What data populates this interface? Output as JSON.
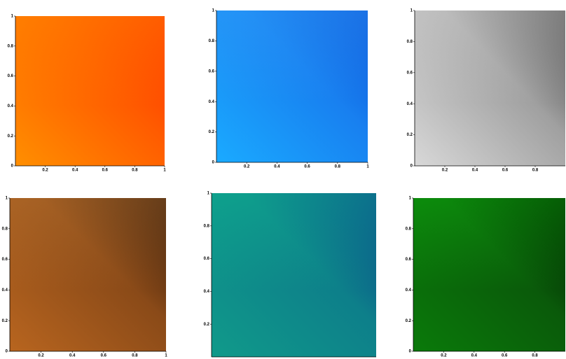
{
  "chart_data": [
    {
      "type": "heatmap",
      "xlim": [
        0,
        1
      ],
      "ylim": [
        0,
        1
      ],
      "xticks": [
        0.2,
        0.4,
        0.6,
        0.8,
        1
      ],
      "yticks": [
        0,
        0.2,
        0.4,
        0.6,
        0.8,
        1
      ],
      "colors": [
        "#ff8f00",
        "#ff5a00",
        "#ff3000",
        "#ffb000"
      ]
    },
    {
      "type": "heatmap",
      "xlim": [
        0,
        1
      ],
      "ylim": [
        0,
        1
      ],
      "xticks": [
        0.2,
        0.4,
        0.6,
        0.8,
        1
      ],
      "yticks": [
        0,
        0.2,
        0.4,
        0.6,
        0.8,
        1
      ],
      "colors": [
        "#1aaaff",
        "#1880f0",
        "#0a50d8",
        "#3ab0ff"
      ]
    },
    {
      "type": "heatmap",
      "xlim": [
        0,
        1
      ],
      "ylim": [
        0,
        1
      ],
      "xticks": [
        0.2,
        0.4,
        0.6,
        0.8
      ],
      "yticks": [
        0,
        0.2,
        0.4,
        0.6,
        0.8,
        1
      ],
      "colors": [
        "#d8d8d8",
        "#a0a0a0",
        "#404040",
        "#f0f0f0"
      ]
    },
    {
      "type": "heatmap",
      "xlim": [
        0,
        1
      ],
      "ylim": [
        0,
        1
      ],
      "xticks": [
        0.2,
        0.4,
        0.6,
        0.8,
        1
      ],
      "yticks": [
        0,
        0.2,
        0.4,
        0.6,
        0.8,
        1
      ],
      "colors": [
        "#b8651f",
        "#8a4a18",
        "#2a1408",
        "#d88a3a"
      ]
    },
    {
      "type": "heatmap",
      "xlim": [
        0,
        1
      ],
      "ylim": [
        0,
        1
      ],
      "xticks": [],
      "yticks": [
        0.2,
        0.4,
        0.6,
        0.8,
        1
      ],
      "colors": [
        "#109a8a",
        "#0d7f8a",
        "#0a3a8a",
        "#10d890"
      ]
    },
    {
      "type": "heatmap",
      "xlim": [
        0,
        1
      ],
      "ylim": [
        0,
        1
      ],
      "xticks": [
        0.2,
        0.4,
        0.6,
        0.8
      ],
      "yticks": [
        0,
        0.2,
        0.4,
        0.6,
        0.8,
        1
      ],
      "colors": [
        "#0a7a0a",
        "#0a5a0a",
        "#001800",
        "#10e010"
      ]
    }
  ]
}
